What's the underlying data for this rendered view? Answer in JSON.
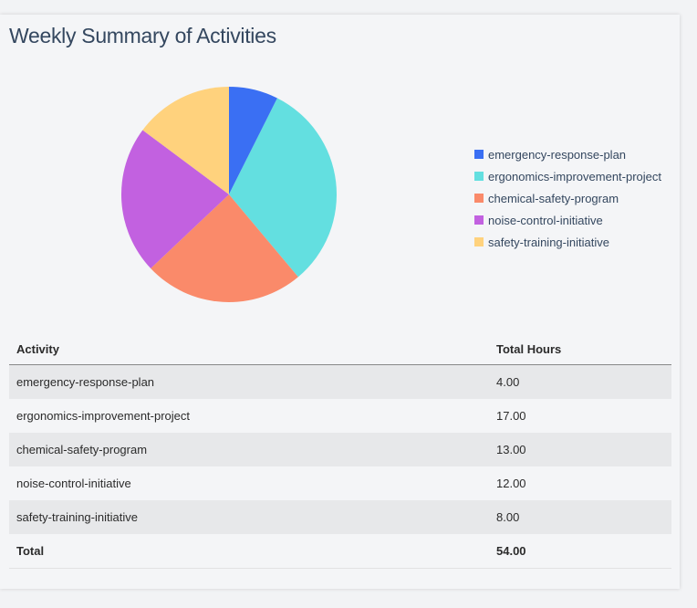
{
  "title": "Weekly Summary of Activities",
  "chart_data": {
    "type": "pie",
    "categories": [
      "emergency-response-plan",
      "ergonomics-improvement-project",
      "chemical-safety-program",
      "noise-control-initiative",
      "safety-training-initiative"
    ],
    "values": [
      4,
      17,
      13,
      12,
      8
    ],
    "colors": [
      "#3a6ff3",
      "#63dfe0",
      "#fa8a6a",
      "#c261e0",
      "#ffd27d"
    ],
    "start": "top",
    "direction": "clockwise",
    "legend_position": "right"
  },
  "table": {
    "headers": [
      "Activity",
      "Total Hours"
    ],
    "rows": [
      [
        "emergency-response-plan",
        "4.00"
      ],
      [
        "ergonomics-improvement-project",
        "17.00"
      ],
      [
        "chemical-safety-program",
        "13.00"
      ],
      [
        "noise-control-initiative",
        "12.00"
      ],
      [
        "safety-training-initiative",
        "8.00"
      ]
    ],
    "total": [
      "Total",
      "54.00"
    ]
  }
}
